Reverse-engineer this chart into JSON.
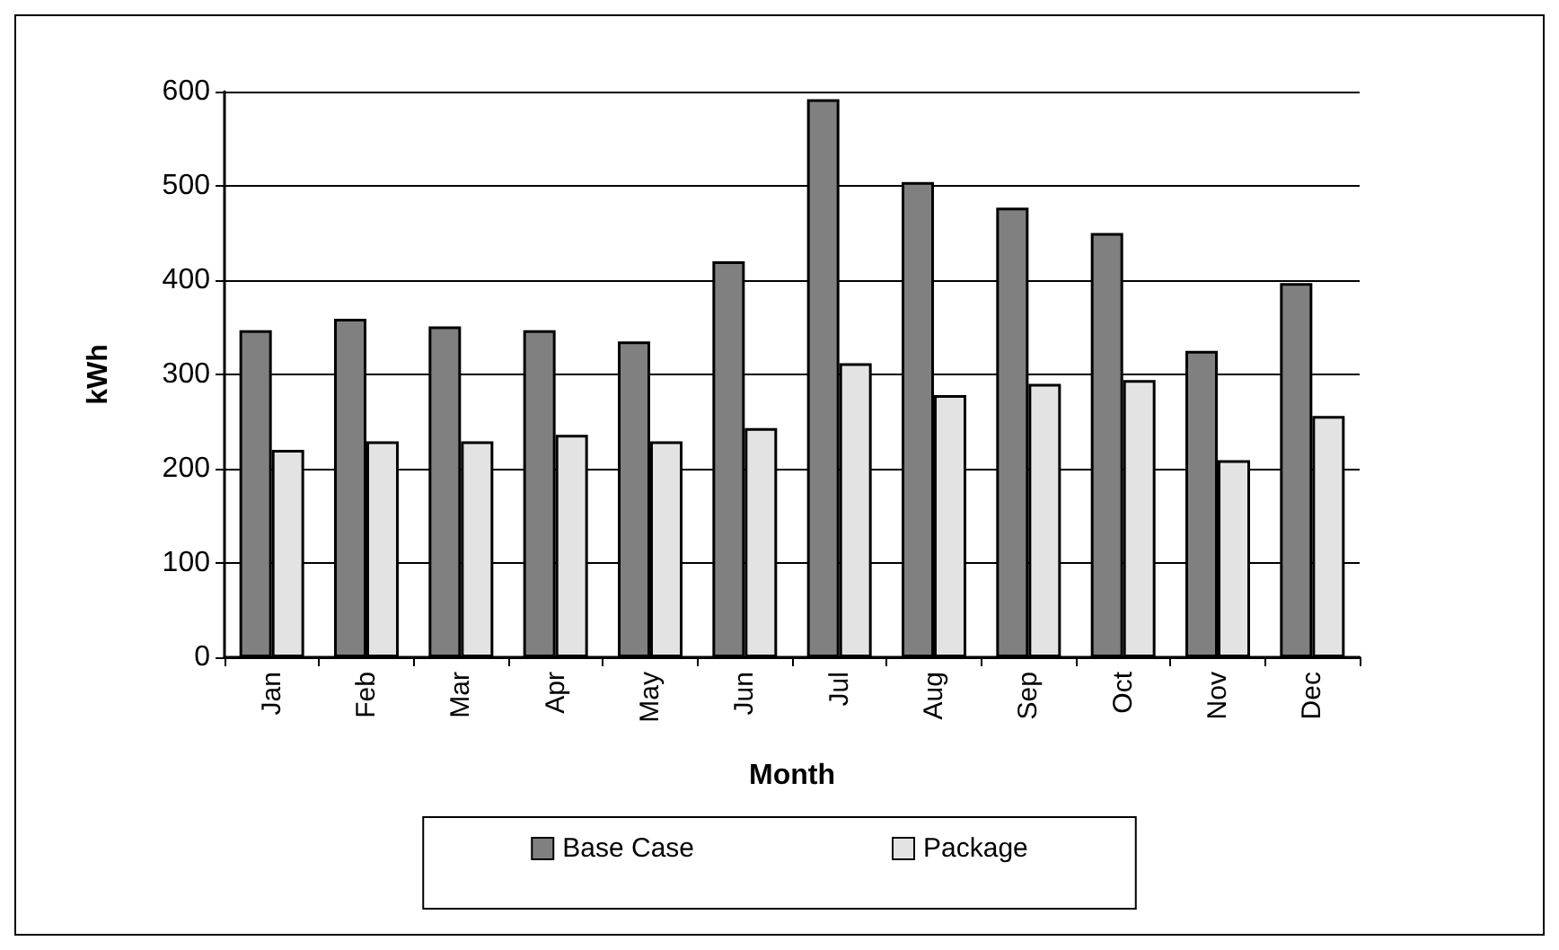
{
  "chart_data": {
    "type": "bar",
    "xlabel": "Month",
    "ylabel": "kWh",
    "categories": [
      "Jan",
      "Feb",
      "Mar",
      "Apr",
      "May",
      "Jun",
      "Jul",
      "Aug",
      "Sep",
      "Oct",
      "Nov",
      "Dec"
    ],
    "series": [
      {
        "name": "Base Case",
        "color": "#808080",
        "values": [
          347,
          359,
          351,
          347,
          335,
          420,
          592,
          504,
          477,
          450,
          325,
          397
        ]
      },
      {
        "name": "Package",
        "color": "#e3e3e3",
        "values": [
          220,
          229,
          229,
          236,
          229,
          243,
          312,
          278,
          290,
          294,
          209,
          256
        ]
      }
    ],
    "ylim": [
      0,
      600
    ],
    "yticks": [
      0,
      100,
      200,
      300,
      400,
      500,
      600
    ],
    "grid": "y",
    "legend": "bottom"
  }
}
